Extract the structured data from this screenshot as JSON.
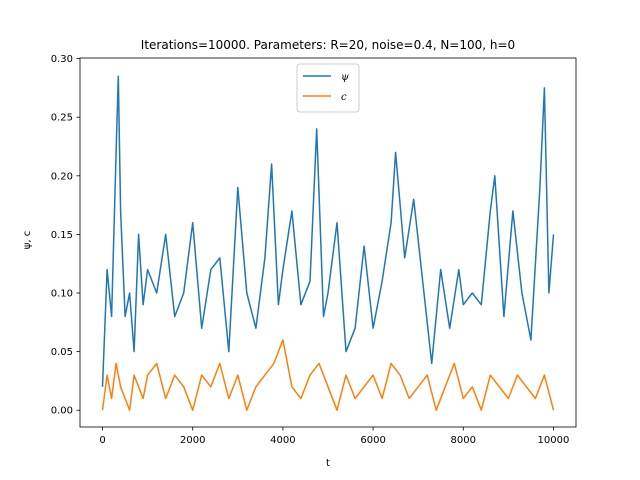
{
  "chart_data": {
    "type": "line",
    "title": "Iterations=10000. Parameters: R=20, noise=0.4, N=100, h=0",
    "xlabel": "t",
    "ylabel": "ψ, c",
    "xlim": [
      -500,
      10500
    ],
    "ylim": [
      -0.0143,
      0.3005
    ],
    "x_ticks": [
      0,
      2000,
      4000,
      6000,
      8000,
      10000
    ],
    "x_tick_labels": [
      "0",
      "2000",
      "4000",
      "6000",
      "8000",
      "10000"
    ],
    "y_ticks": [
      0.0,
      0.05,
      0.1,
      0.15,
      0.2,
      0.25,
      0.3
    ],
    "y_tick_labels": [
      "0.00",
      "0.05",
      "0.10",
      "0.15",
      "0.20",
      "0.25",
      "0.30"
    ],
    "grid": false,
    "legend_position": "top-center",
    "series": [
      {
        "name": "ψ",
        "color": "#1f77b4",
        "x": [
          0,
          100,
          200,
          300,
          350,
          400,
          500,
          600,
          700,
          800,
          900,
          1000,
          1200,
          1400,
          1600,
          1800,
          2000,
          2200,
          2400,
          2600,
          2800,
          3000,
          3200,
          3400,
          3600,
          3750,
          3900,
          4000,
          4200,
          4400,
          4600,
          4750,
          4900,
          5000,
          5200,
          5400,
          5600,
          5800,
          6000,
          6200,
          6400,
          6500,
          6700,
          6900,
          7100,
          7300,
          7500,
          7700,
          7900,
          8000,
          8200,
          8400,
          8600,
          8700,
          8900,
          9100,
          9300,
          9500,
          9700,
          9800,
          9900,
          10000
        ],
        "values": [
          0.02,
          0.12,
          0.08,
          0.22,
          0.285,
          0.17,
          0.08,
          0.1,
          0.05,
          0.15,
          0.09,
          0.12,
          0.1,
          0.15,
          0.08,
          0.1,
          0.16,
          0.07,
          0.12,
          0.13,
          0.05,
          0.19,
          0.1,
          0.07,
          0.13,
          0.21,
          0.09,
          0.12,
          0.17,
          0.09,
          0.11,
          0.24,
          0.08,
          0.1,
          0.16,
          0.05,
          0.07,
          0.14,
          0.07,
          0.11,
          0.16,
          0.22,
          0.13,
          0.18,
          0.11,
          0.04,
          0.12,
          0.07,
          0.12,
          0.09,
          0.1,
          0.09,
          0.17,
          0.2,
          0.08,
          0.17,
          0.1,
          0.06,
          0.19,
          0.275,
          0.1,
          0.15
        ]
      },
      {
        "name": "c",
        "color": "#ff7f0e",
        "x": [
          0,
          100,
          200,
          300,
          400,
          500,
          600,
          700,
          800,
          900,
          1000,
          1200,
          1400,
          1600,
          1800,
          2000,
          2200,
          2400,
          2600,
          2800,
          3000,
          3200,
          3400,
          3600,
          3800,
          4000,
          4200,
          4400,
          4600,
          4800,
          5000,
          5200,
          5400,
          5600,
          5800,
          6000,
          6200,
          6400,
          6600,
          6800,
          7000,
          7200,
          7400,
          7600,
          7800,
          8000,
          8200,
          8400,
          8600,
          8800,
          9000,
          9200,
          9400,
          9600,
          9800,
          10000
        ],
        "values": [
          0.0,
          0.03,
          0.01,
          0.04,
          0.02,
          0.01,
          0.0,
          0.03,
          0.02,
          0.01,
          0.03,
          0.04,
          0.01,
          0.03,
          0.02,
          0.0,
          0.03,
          0.02,
          0.04,
          0.01,
          0.03,
          0.0,
          0.02,
          0.03,
          0.04,
          0.06,
          0.02,
          0.01,
          0.03,
          0.04,
          0.02,
          0.0,
          0.03,
          0.01,
          0.02,
          0.03,
          0.01,
          0.04,
          0.03,
          0.01,
          0.02,
          0.03,
          0.0,
          0.02,
          0.04,
          0.01,
          0.02,
          0.0,
          0.03,
          0.02,
          0.01,
          0.03,
          0.02,
          0.01,
          0.03,
          0.0
        ]
      }
    ]
  }
}
